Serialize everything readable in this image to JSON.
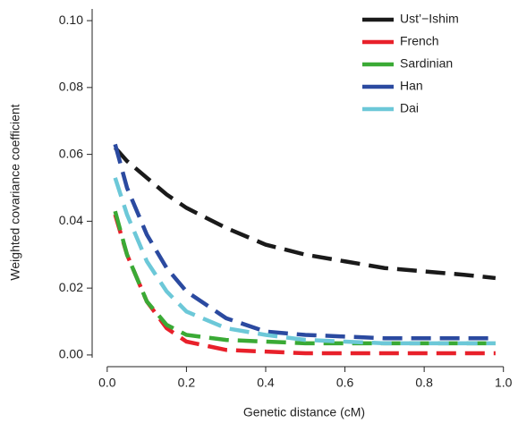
{
  "chart_data": {
    "type": "line",
    "x_label": "Genetic distance (cM)",
    "y_label": "Weighted covariance coefficient",
    "x": [
      0.02,
      0.05,
      0.1,
      0.15,
      0.2,
      0.3,
      0.4,
      0.5,
      0.6,
      0.7,
      0.8,
      0.9,
      0.98
    ],
    "series": [
      {
        "name": "Ust’−Ishim",
        "color": "#1a1a1a",
        "values": [
          0.062,
          0.058,
          0.053,
          0.048,
          0.044,
          0.038,
          0.033,
          0.03,
          0.028,
          0.026,
          0.025,
          0.024,
          0.023
        ]
      },
      {
        "name": "French",
        "color": "#e8202a",
        "values": [
          0.042,
          0.03,
          0.016,
          0.008,
          0.004,
          0.0015,
          0.001,
          0.0005,
          0.0005,
          0.0005,
          0.0005,
          0.0005,
          0.0005
        ]
      },
      {
        "name": "Sardinian",
        "color": "#3aaa35",
        "values": [
          0.043,
          0.03,
          0.016,
          0.009,
          0.006,
          0.0045,
          0.004,
          0.0035,
          0.0035,
          0.0035,
          0.0035,
          0.0035,
          0.0035
        ]
      },
      {
        "name": "Han",
        "color": "#2b4aa0",
        "values": [
          0.063,
          0.05,
          0.036,
          0.026,
          0.019,
          0.011,
          0.007,
          0.006,
          0.0055,
          0.005,
          0.005,
          0.005,
          0.005
        ]
      },
      {
        "name": "Dai",
        "color": "#6cc8d8",
        "values": [
          0.053,
          0.042,
          0.028,
          0.019,
          0.013,
          0.008,
          0.006,
          0.0045,
          0.004,
          0.0035,
          0.0035,
          0.0035,
          0.0035
        ]
      }
    ],
    "xlim": [
      -0.038,
      1.03
    ],
    "ylim": [
      -0.0035,
      0.1035
    ],
    "xticks": [
      {
        "value": 0,
        "label": "0.0"
      },
      0.2,
      0.4,
      0.6,
      0.8,
      {
        "value": 1,
        "label": "1.0"
      }
    ],
    "yticks": [
      {
        "value": 0,
        "label": "0.00"
      },
      0.02,
      0.04,
      0.06,
      0.08,
      {
        "value": 0.1,
        "label": "0.10"
      }
    ],
    "legend": "top-right",
    "grid": false
  }
}
